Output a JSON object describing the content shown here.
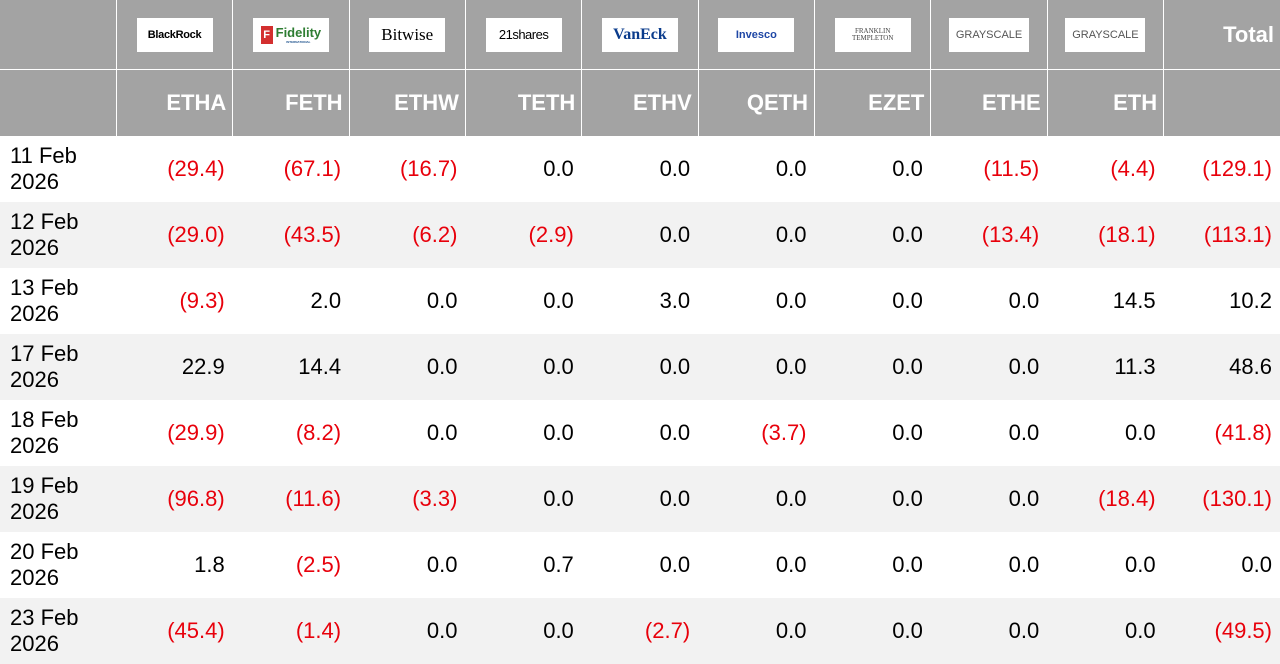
{
  "header": {
    "issuers": [
      "BlackRock",
      "Fidelity",
      "Bitwise",
      "21shares",
      "VanEck",
      "Invesco",
      "FRANKLIN TEMPLETON",
      "GRAYSCALE",
      "GRAYSCALE"
    ],
    "fidelity_subtitle": "INTERNATIONAL",
    "total": "Total",
    "tickers": [
      "ETHA",
      "FETH",
      "ETHW",
      "TETH",
      "ETHV",
      "QETH",
      "EZET",
      "ETHE",
      "ETH"
    ]
  },
  "table": {
    "rows": [
      [
        "11 Feb 2026",
        "(29.4)",
        "(67.1)",
        "(16.7)",
        "0.0",
        "0.0",
        "0.0",
        "0.0",
        "(11.5)",
        "(4.4)",
        "(129.1)"
      ],
      [
        "12 Feb 2026",
        "(29.0)",
        "(43.5)",
        "(6.2)",
        "(2.9)",
        "0.0",
        "0.0",
        "0.0",
        "(13.4)",
        "(18.1)",
        "(113.1)"
      ],
      [
        "13 Feb 2026",
        "(9.3)",
        "2.0",
        "0.0",
        "0.0",
        "3.0",
        "0.0",
        "0.0",
        "0.0",
        "14.5",
        "10.2"
      ],
      [
        "17 Feb 2026",
        "22.9",
        "14.4",
        "0.0",
        "0.0",
        "0.0",
        "0.0",
        "0.0",
        "0.0",
        "11.3",
        "48.6"
      ],
      [
        "18 Feb 2026",
        "(29.9)",
        "(8.2)",
        "0.0",
        "0.0",
        "0.0",
        "(3.7)",
        "0.0",
        "0.0",
        "0.0",
        "(41.8)"
      ],
      [
        "19 Feb 2026",
        "(96.8)",
        "(11.6)",
        "(3.3)",
        "0.0",
        "0.0",
        "0.0",
        "0.0",
        "0.0",
        "(18.4)",
        "(130.1)"
      ],
      [
        "20 Feb 2026",
        "1.8",
        "(2.5)",
        "0.0",
        "0.7",
        "0.0",
        "0.0",
        "0.0",
        "0.0",
        "0.0",
        "0.0"
      ],
      [
        "23 Feb 2026",
        "(45.4)",
        "(1.4)",
        "0.0",
        "0.0",
        "(2.7)",
        "0.0",
        "0.0",
        "0.0",
        "0.0",
        "(49.5)"
      ]
    ],
    "negative_color": "#e8000b"
  }
}
